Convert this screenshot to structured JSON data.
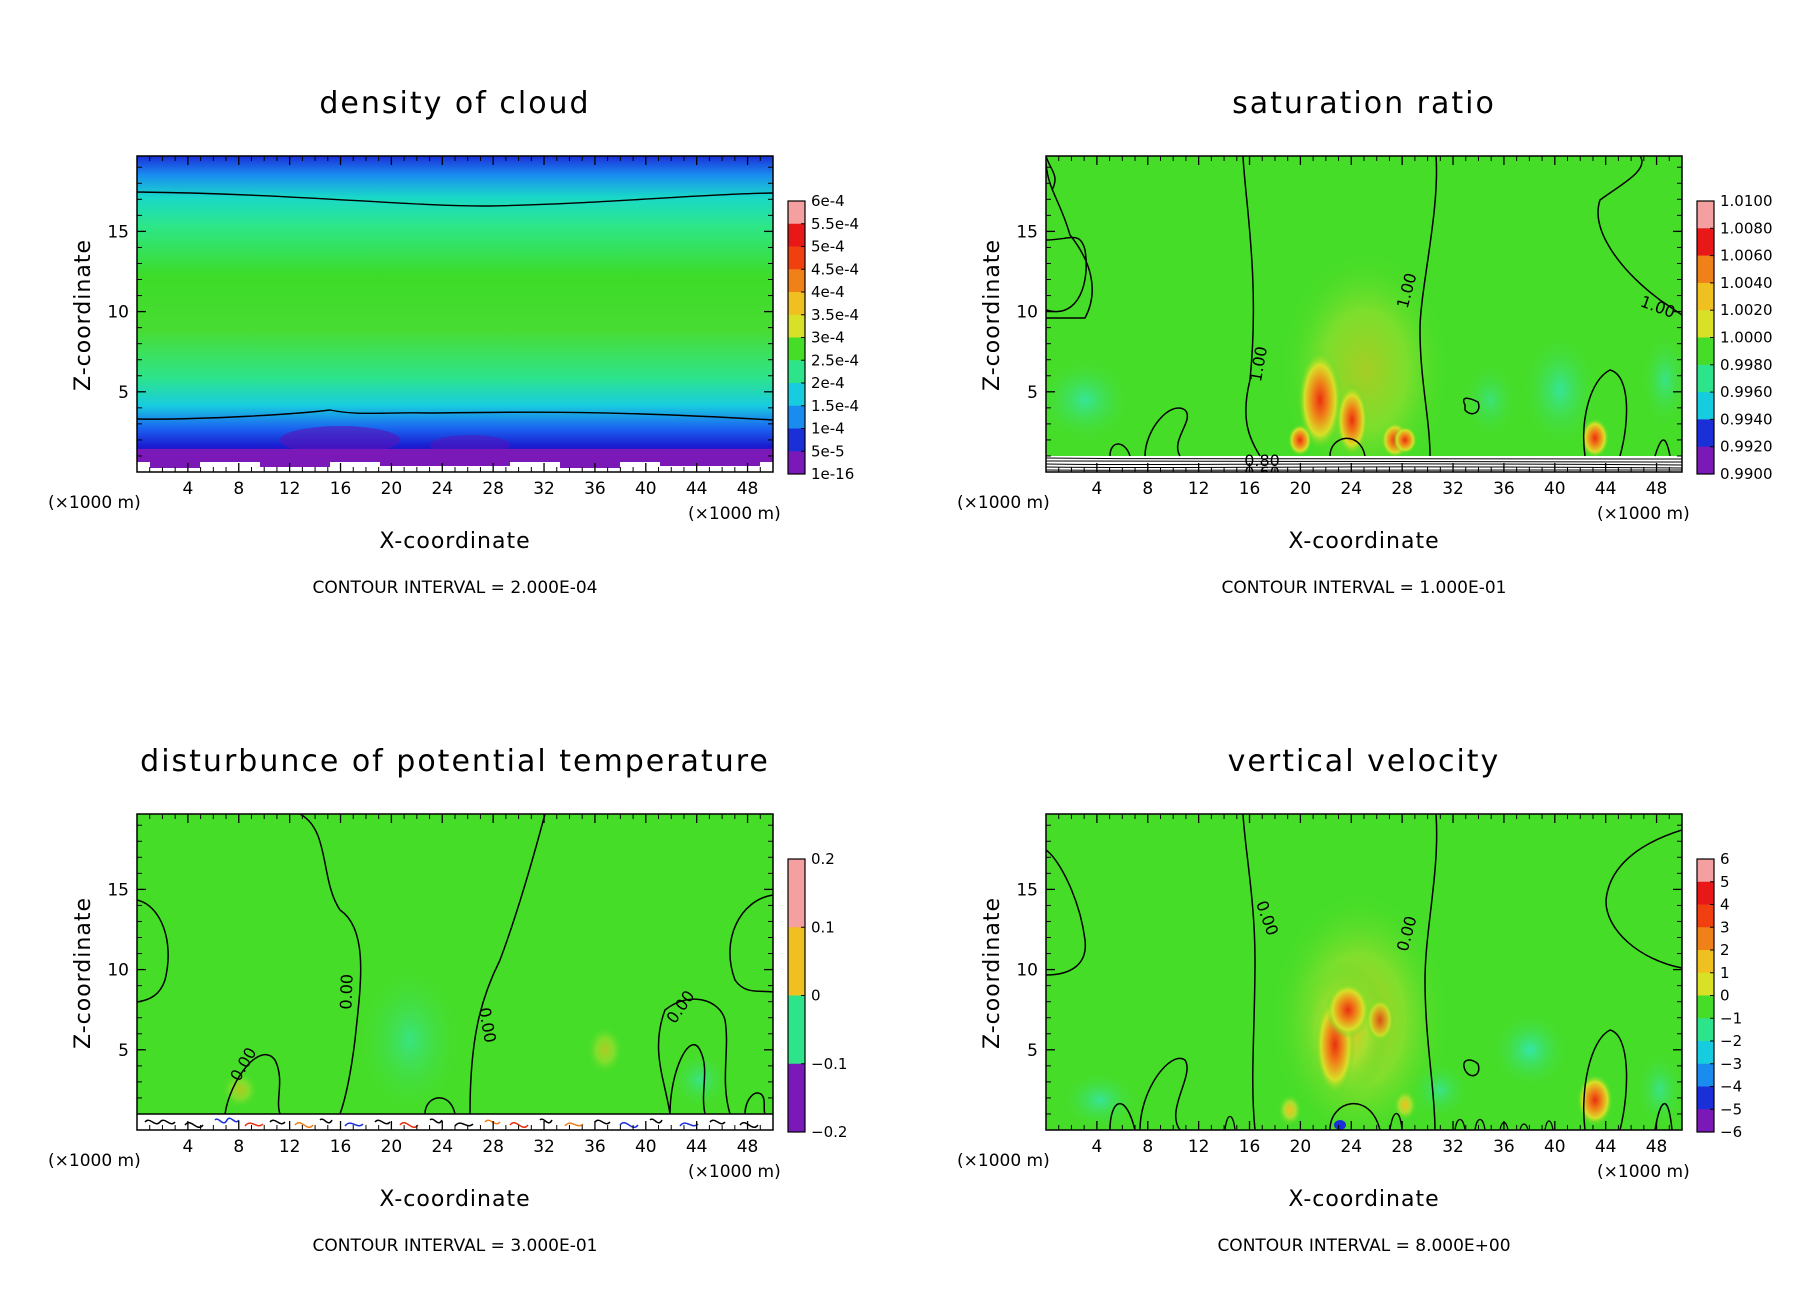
{
  "chart_data": [
    {
      "type": "heatmap",
      "title": "density of cloud",
      "xlabel": "X-coordinate",
      "ylabel": "Z-coordinate",
      "x_unit": "(×1000 m)",
      "y_unit": "(×1000 m)",
      "xlim": [
        0,
        50
      ],
      "ylim": [
        0,
        19.7
      ],
      "x_ticks": [
        "4",
        "8",
        "12",
        "16",
        "20",
        "24",
        "28",
        "32",
        "36",
        "40",
        "44",
        "48"
      ],
      "y_ticks": [
        "5",
        "10",
        "15"
      ],
      "colorbar_labels": [
        "6e-4",
        "5.5e-4",
        "5e-4",
        "4.5e-4",
        "4e-4",
        "3.5e-4",
        "3e-4",
        "2.5e-4",
        "2e-4",
        "1.5e-4",
        "1e-4",
        "5e-5",
        "1e-16"
      ],
      "contour_interval": "CONTOUR INTERVAL = 2.000E-04",
      "contour_labels": []
    },
    {
      "type": "heatmap",
      "title": "saturation ratio",
      "xlabel": "X-coordinate",
      "ylabel": "Z-coordinate",
      "x_unit": "(×1000 m)",
      "y_unit": "(×1000 m)",
      "xlim": [
        0,
        50
      ],
      "ylim": [
        0,
        19.7
      ],
      "x_ticks": [
        "4",
        "8",
        "12",
        "16",
        "20",
        "24",
        "28",
        "32",
        "36",
        "40",
        "44",
        "48"
      ],
      "y_ticks": [
        "5",
        "10",
        "15"
      ],
      "colorbar_labels": [
        "1.0100",
        "1.0080",
        "1.0060",
        "1.0040",
        "1.0020",
        "1.0000",
        "0.9980",
        "0.9960",
        "0.9940",
        "0.9920",
        "0.9900"
      ],
      "contour_interval": "CONTOUR INTERVAL = 1.000E-01",
      "contour_labels": [
        "1.00",
        "1.00",
        "1.00",
        "0.80",
        "0.60"
      ]
    },
    {
      "type": "heatmap",
      "title": "disturbunce of potential temperature",
      "xlabel": "X-coordinate",
      "ylabel": "Z-coordinate",
      "x_unit": "(×1000 m)",
      "y_unit": "(×1000 m)",
      "xlim": [
        0,
        50
      ],
      "ylim": [
        0,
        19.7
      ],
      "x_ticks": [
        "4",
        "8",
        "12",
        "16",
        "20",
        "24",
        "28",
        "32",
        "36",
        "40",
        "44",
        "48"
      ],
      "y_ticks": [
        "5",
        "10",
        "15"
      ],
      "colorbar_labels": [
        "0.2",
        "0.1",
        "0",
        "−0.1",
        "−0.2"
      ],
      "contour_interval": "CONTOUR INTERVAL = 3.000E-01",
      "contour_labels": [
        "0.00",
        "0.00",
        "0.00",
        "0.00"
      ]
    },
    {
      "type": "heatmap",
      "title": "vertical velocity",
      "xlabel": "X-coordinate",
      "ylabel": "Z-coordinate",
      "x_unit": "(×1000 m)",
      "y_unit": "(×1000 m)",
      "xlim": [
        0,
        50
      ],
      "ylim": [
        0,
        19.7
      ],
      "x_ticks": [
        "4",
        "8",
        "12",
        "16",
        "20",
        "24",
        "28",
        "32",
        "36",
        "40",
        "44",
        "48"
      ],
      "y_ticks": [
        "5",
        "10",
        "15"
      ],
      "colorbar_labels": [
        "6",
        "5",
        "4",
        "3",
        "2",
        "1",
        "0",
        "−1",
        "−2",
        "−3",
        "−4",
        "−5",
        "−6"
      ],
      "contour_interval": "CONTOUR INTERVAL = 8.000E+00",
      "contour_labels": [
        "0.00",
        "0.00"
      ]
    }
  ]
}
